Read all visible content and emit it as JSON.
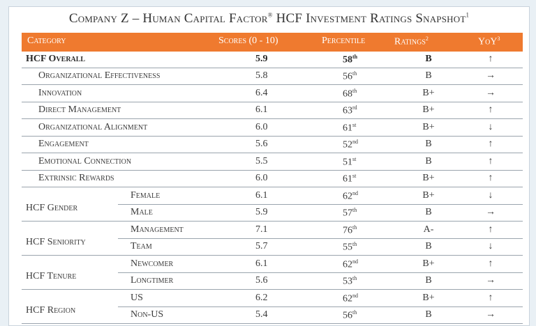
{
  "title": {
    "text": "Company Z – Human Capital Factor",
    "reg": "®",
    "rest": " HCF Investment Ratings Snapshot",
    "note": "1"
  },
  "header": {
    "category": "Category",
    "scores": "Scores (0 - 10)",
    "percentile": "Percentile",
    "ratings": "Ratings",
    "ratings_note": "2",
    "yoy": "YoY",
    "yoy_note": "3"
  },
  "rows": [
    {
      "label": "HCF Overall",
      "score": "5.9",
      "pct": "58",
      "sfx": "th",
      "rating": "B",
      "yoy": "↑"
    },
    {
      "label": "Organizational Effectiveness",
      "score": "5.8",
      "pct": "56",
      "sfx": "th",
      "rating": "B",
      "yoy": "→"
    },
    {
      "label": "Innovation",
      "score": "6.4",
      "pct": "68",
      "sfx": "th",
      "rating": "B+",
      "yoy": "→"
    },
    {
      "label": "Direct Management",
      "score": "6.1",
      "pct": "63",
      "sfx": "rd",
      "rating": "B+",
      "yoy": "↑"
    },
    {
      "label": "Organizational Alignment",
      "score": "6.0",
      "pct": "61",
      "sfx": "st",
      "rating": "B+",
      "yoy": "↓"
    },
    {
      "label": "Engagement",
      "score": "5.6",
      "pct": "52",
      "sfx": "nd",
      "rating": "B",
      "yoy": "↑"
    },
    {
      "label": "Emotional Connection",
      "score": "5.5",
      "pct": "51",
      "sfx": "st",
      "rating": "B",
      "yoy": "↑"
    },
    {
      "label": "Extrinsic Rewards",
      "score": "6.0",
      "pct": "61",
      "sfx": "st",
      "rating": "B+",
      "yoy": "↑"
    },
    {
      "label": "Female",
      "score": "6.1",
      "pct": "62",
      "sfx": "nd",
      "rating": "B+",
      "yoy": "↓"
    },
    {
      "label": "Male",
      "score": "5.9",
      "pct": "57",
      "sfx": "th",
      "rating": "B",
      "yoy": "→"
    },
    {
      "label": "Management",
      "score": "7.1",
      "pct": "76",
      "sfx": "th",
      "rating": "A-",
      "yoy": "↑"
    },
    {
      "label": "Team",
      "score": "5.7",
      "pct": "55",
      "sfx": "th",
      "rating": "B",
      "yoy": "↓"
    },
    {
      "label": "Newcomer",
      "score": "6.1",
      "pct": "62",
      "sfx": "nd",
      "rating": "B+",
      "yoy": "↑"
    },
    {
      "label": "Longtimer",
      "score": "5.6",
      "pct": "53",
      "sfx": "th",
      "rating": "B",
      "yoy": "→"
    },
    {
      "label": "US",
      "score": "6.2",
      "pct": "62",
      "sfx": "nd",
      "rating": "B+",
      "yoy": "↑"
    },
    {
      "label": "Non-US",
      "score": "5.4",
      "pct": "56",
      "sfx": "th",
      "rating": "B",
      "yoy": "→"
    }
  ],
  "groups": [
    "HCF Gender",
    "HCF Seniority",
    "HCF Tenure",
    "HCF Region"
  ],
  "colors": {
    "header_bg": "#ef7a2f",
    "background": "#e9f0f5"
  }
}
